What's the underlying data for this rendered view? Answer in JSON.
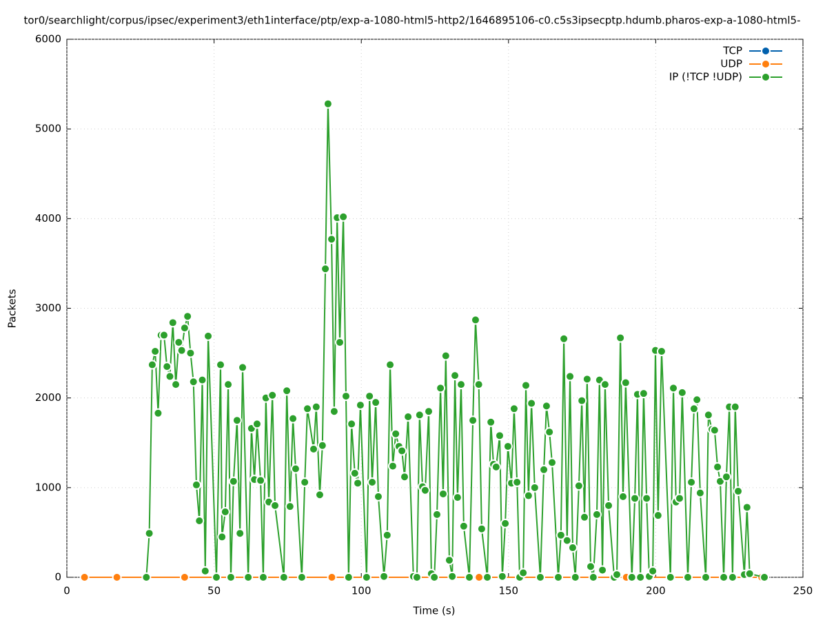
{
  "chart_data": {
    "type": "line",
    "title": "tor0/searchlight/corpus/ipsec/experiment3/eth1interface/ptp/exp-a-1080-html5-http2/1646895106-c0.c5s3ipsecptp.hdumb.pharos-exp-a-1080-html5-",
    "x_label": "Time (s)",
    "y_label": "Packets",
    "xlim": [
      0,
      250
    ],
    "xticks": [
      0,
      50,
      100,
      150,
      200,
      250
    ],
    "ylim": [
      0,
      6000
    ],
    "yticks": [
      0,
      1000,
      2000,
      3000,
      4000,
      5000,
      6000
    ],
    "grid": true,
    "legend": "top-right",
    "series": [
      {
        "name": "TCP",
        "color": "#0060ad",
        "x": [
          6,
          17,
          40,
          90,
          140,
          190,
          236
        ],
        "values": [
          0,
          0,
          0,
          0,
          0,
          0,
          0
        ]
      },
      {
        "name": "UDP",
        "color": "#ff7f0e",
        "x": [
          6,
          17,
          40,
          90,
          140,
          190,
          236
        ],
        "values": [
          0,
          0,
          0,
          0,
          0,
          0,
          0
        ]
      },
      {
        "name": "IP (!TCP  !UDP)",
        "color": "#2ca02c",
        "x": [
          27,
          28,
          29,
          30,
          31,
          32,
          33,
          34,
          35,
          36,
          37,
          38,
          39,
          40,
          41,
          42,
          43,
          44,
          45,
          46,
          47,
          48,
          50.8,
          52.2,
          52.7,
          53.8,
          54.8,
          55.7,
          56.6,
          57.8,
          58.8,
          59.7,
          61.6,
          62.7,
          63.7,
          64.6,
          65.8,
          66.7,
          67.6,
          68.6,
          69.8,
          70.7,
          73.7,
          74.7,
          75.8,
          76.8,
          77.7,
          79.8,
          80.8,
          81.7,
          83.8,
          84.7,
          85.9,
          86.8,
          87.8,
          88.7,
          89.9,
          90.8,
          91.8,
          92.7,
          93.9,
          94.8,
          95.7,
          96.7,
          97.8,
          98.8,
          99.7,
          101.8,
          102.8,
          103.7,
          104.9,
          105.8,
          107.7,
          108.8,
          109.8,
          110.7,
          111.7,
          112.8,
          113.8,
          114.7,
          115.9,
          117.7,
          118.9,
          119.8,
          120.8,
          121.7,
          122.9,
          123.8,
          124.8,
          125.7,
          126.9,
          127.8,
          128.7,
          129.9,
          130.9,
          131.8,
          132.7,
          133.9,
          134.8,
          136.7,
          137.9,
          138.8,
          139.9,
          140.9,
          142.8,
          144,
          144.9,
          145.8,
          147,
          147.9,
          148.9,
          149.8,
          151,
          151.9,
          152.9,
          153.8,
          155,
          155.9,
          156.8,
          157.8,
          158.9,
          160.8,
          162,
          162.9,
          163.9,
          164.8,
          166.9,
          167.8,
          168.8,
          169.9,
          170.9,
          171.8,
          172.7,
          173.9,
          174.9,
          175.8,
          176.7,
          177.9,
          178.8,
          180,
          180.9,
          181.9,
          182.8,
          184,
          185.9,
          186.8,
          188,
          188.9,
          189.8,
          191.9,
          192.9,
          193.8,
          194.8,
          195.9,
          196.9,
          197.8,
          199,
          199.9,
          200.8,
          202,
          205,
          206,
          206.9,
          208.1,
          209,
          210.9,
          212.1,
          213,
          214,
          215.1,
          217,
          217.9,
          219.1,
          220,
          221,
          221.9,
          223.1,
          224,
          225,
          226.1,
          227,
          228,
          230.1,
          231,
          231.9,
          236.9
        ],
        "values": [
          0,
          490,
          2370,
          2520,
          1830,
          2700,
          2700,
          2350,
          2240,
          2840,
          2150,
          2620,
          2530,
          2780,
          2910,
          2500,
          2180,
          1030,
          630,
          2200,
          70,
          2690,
          0,
          2370,
          450,
          730,
          2150,
          0,
          1070,
          1750,
          490,
          2340,
          0,
          1660,
          1090,
          1710,
          1080,
          0,
          2000,
          840,
          2030,
          800,
          0,
          2080,
          790,
          1770,
          1210,
          0,
          1060,
          1880,
          1430,
          1900,
          920,
          1470,
          3440,
          5280,
          3770,
          1850,
          4010,
          2620,
          4020,
          2020,
          0,
          1710,
          1160,
          1050,
          1920,
          0,
          2020,
          1060,
          1950,
          900,
          10,
          470,
          2370,
          1240,
          1600,
          1460,
          1410,
          1120,
          1790,
          10,
          0,
          1810,
          1010,
          970,
          1850,
          40,
          0,
          700,
          2110,
          930,
          2470,
          190,
          10,
          2250,
          890,
          2150,
          570,
          0,
          1750,
          2870,
          2150,
          540,
          0,
          1730,
          1260,
          1230,
          1580,
          10,
          600,
          1460,
          1050,
          1880,
          1060,
          0,
          50,
          2140,
          910,
          1940,
          1000,
          0,
          1200,
          1910,
          1620,
          1280,
          0,
          470,
          2660,
          410,
          2240,
          330,
          0,
          1020,
          1970,
          670,
          2210,
          120,
          0,
          700,
          2200,
          80,
          2150,
          800,
          0,
          30,
          2670,
          900,
          2170,
          0,
          880,
          2040,
          0,
          2050,
          880,
          10,
          70,
          2530,
          690,
          2520,
          0,
          2110,
          840,
          880,
          2060,
          0,
          1060,
          1880,
          1980,
          940,
          0,
          1810,
          1650,
          1640,
          1230,
          1070,
          0,
          1120,
          1900,
          0,
          1900,
          960,
          30,
          780,
          40,
          0
        ]
      }
    ]
  }
}
